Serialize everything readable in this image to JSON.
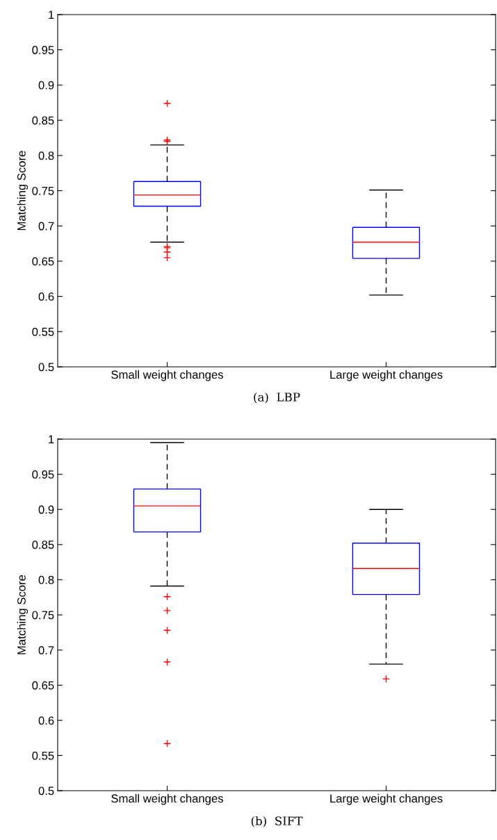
{
  "chart_data": [
    {
      "type": "box",
      "ylabel": "Matching Score",
      "categories": [
        "Small weight changes",
        "Large weight changes"
      ],
      "ylim": [
        0.5,
        1
      ],
      "yticks": [
        0.5,
        0.55,
        0.6,
        0.65,
        0.7,
        0.75,
        0.8,
        0.85,
        0.9,
        0.95,
        1
      ],
      "boxes": [
        {
          "low": 0.677,
          "q1": 0.728,
          "median": 0.744,
          "q3": 0.763,
          "high": 0.815,
          "outliers": [
            0.874,
            0.822,
            0.82,
            0.671,
            0.669,
            0.663,
            0.655
          ]
        },
        {
          "low": 0.602,
          "q1": 0.654,
          "median": 0.677,
          "q3": 0.698,
          "high": 0.751
        }
      ],
      "annotations": [
        "(a)  LBP"
      ]
    },
    {
      "type": "box",
      "ylabel": "Matching Score",
      "categories": [
        "Small weight changes",
        "Large weight changes"
      ],
      "ylim": [
        0.5,
        1
      ],
      "yticks": [
        0.5,
        0.55,
        0.6,
        0.65,
        0.7,
        0.75,
        0.8,
        0.85,
        0.9,
        0.95,
        1
      ],
      "boxes": [
        {
          "low": 0.791,
          "q1": 0.868,
          "median": 0.905,
          "q3": 0.929,
          "high": 0.995,
          "outliers": [
            0.776,
            0.756,
            0.728,
            0.683,
            0.567
          ]
        },
        {
          "low": 0.68,
          "q1": 0.779,
          "median": 0.816,
          "q3": 0.852,
          "high": 0.9,
          "outliers": [
            0.659
          ]
        }
      ],
      "annotations": [
        "(b)  SIFT"
      ]
    }
  ]
}
